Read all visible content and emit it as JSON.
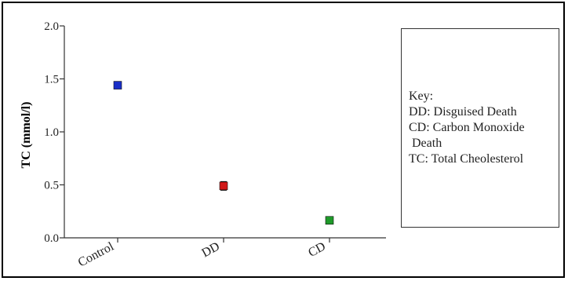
{
  "chart_data": {
    "type": "scatter",
    "categories": [
      "Control",
      "DD",
      "CD"
    ],
    "series": [
      {
        "values": [
          1.44,
          0.49,
          0.165
        ],
        "errors": [
          0.02,
          0.04,
          0.015
        ],
        "colors": [
          "#1a2fc8",
          "#d11818",
          "#1f9a2a"
        ]
      }
    ],
    "title": "",
    "xlabel": "",
    "ylabel": "TC (mmol/l)",
    "ylim": [
      0,
      2.0
    ],
    "yticks": [
      "0.0",
      "0.5",
      "1.0",
      "1.5",
      "2.0"
    ],
    "grid": false,
    "legend": "right",
    "key": {
      "lines": [
        "Key:",
        "DD: Disguised Death",
        "CD: Carbon Monoxide",
        " Death",
        "TC: Total Cheolesterol"
      ]
    }
  }
}
